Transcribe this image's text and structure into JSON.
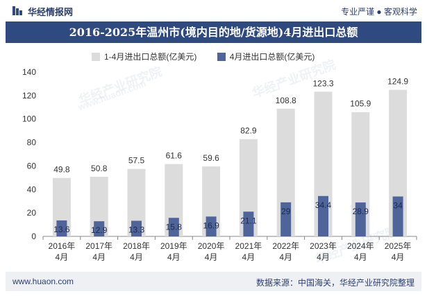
{
  "header": {
    "logo_text": "华经情报网",
    "slogan": "专业严谨 ● 客观科学"
  },
  "watermark": {
    "cn": "华经产业研究院",
    "url": "www.huaon.com"
  },
  "footer": {
    "website": "www.huaon.com",
    "source": "数据来源：中国海关，华经产业研究院整理"
  },
  "colors": {
    "title_bg": "#2e4a80",
    "series1": "#dcdcdc",
    "series2": "#4f6499"
  },
  "chart_data": {
    "type": "bar",
    "title": "2016-2025年温州市(境内目的地/货源地)4月进出口总额",
    "categories": [
      "2016年\n4月",
      "2017年\n4月",
      "2018年\n4月",
      "2019年\n4月",
      "2020年\n4月",
      "2021年\n4月",
      "2022年\n4月",
      "2023年\n4月",
      "2024年\n4月",
      "2025年\n4月"
    ],
    "series": [
      {
        "name": "1-4月进出口总额(亿美元)",
        "values": [
          49.8,
          50.8,
          57.5,
          61.6,
          59.6,
          82.9,
          108.8,
          123.3,
          105.9,
          124.9
        ]
      },
      {
        "name": "4月进出口总额(亿美元)",
        "values": [
          13.6,
          12.9,
          13.3,
          15.8,
          16.9,
          21.1,
          29,
          34.4,
          28.9,
          34
        ]
      }
    ],
    "yticks": [
      0,
      20,
      40,
      60,
      80,
      100,
      120,
      140
    ],
    "ylim": [
      0,
      140
    ],
    "legend_position": "top",
    "grid": false
  }
}
